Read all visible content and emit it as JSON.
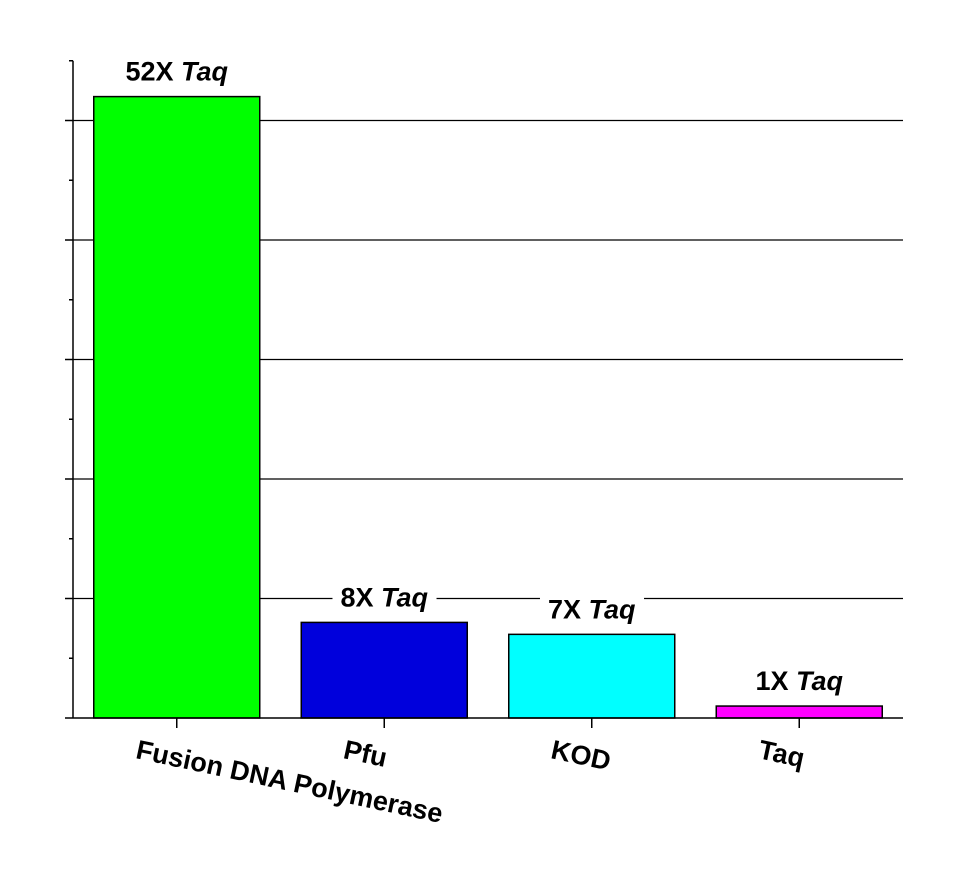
{
  "chart_data": {
    "type": "bar",
    "categories": [
      "Fusion DNA Polymerase",
      "Pfu",
      "KOD",
      "Taq"
    ],
    "series": [
      {
        "values": [
          52,
          8,
          7,
          1
        ],
        "colors": [
          "#00ff00",
          "#0000dc",
          "#00ffff",
          "#ff00ff"
        ],
        "value_labels": [
          "52X Taq",
          "8X Taq",
          "7X Taq",
          "1X Taq"
        ]
      }
    ],
    "ylim": [
      0,
      55
    ],
    "yticks": [
      0,
      10,
      20,
      30,
      40,
      50
    ],
    "yminorticks": [
      5,
      15,
      25,
      35,
      45,
      55
    ],
    "grid": true
  }
}
